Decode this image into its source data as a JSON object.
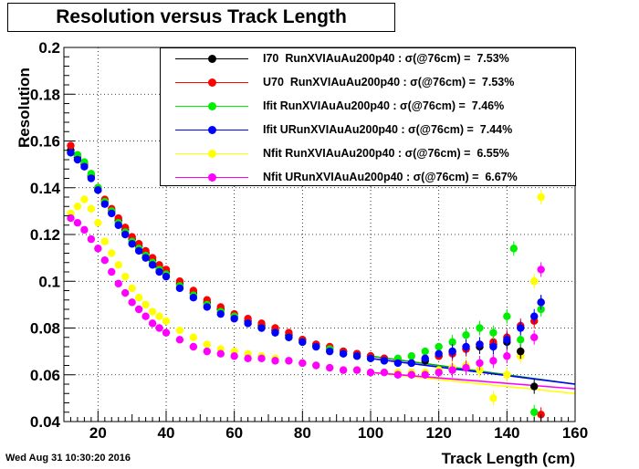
{
  "header": {
    "title": "Resolution versus Track Length"
  },
  "footer": {
    "timestamp": "Wed Aug 31 10:30:20 2016"
  },
  "legend": {
    "entries": [
      {
        "label": "I70  RunXVIAuAu200p40 : σ(@76cm) =  7.53%",
        "color": "#000000"
      },
      {
        "label": "U70  RunXVIAuAu200p40 : σ(@76cm) =  7.53%",
        "color": "#ff0000"
      },
      {
        "label": "Ifit RunXVIAuAu200p40 : σ(@76cm) =  7.46%",
        "color": "#00ee00"
      },
      {
        "label": "Ifit URunXVIAuAu200p40 : σ(@76cm) =  7.44%",
        "color": "#0000ff"
      },
      {
        "label": "Nfit RunXVIAuAu200p40 : σ(@76cm) =  6.55%",
        "color": "#ffff00"
      },
      {
        "label": "Nfit URunXVIAuAu200p40 : σ(@76cm) =  6.67%",
        "color": "#ff00ff"
      }
    ]
  },
  "chart_data": {
    "type": "scatter",
    "title": "Resolution versus Track Length",
    "xlabel": "Track Length (cm)",
    "ylabel": "Resolution",
    "xlim": [
      10,
      160
    ],
    "ylim": [
      0.04,
      0.2
    ],
    "xticks": [
      "20",
      "40",
      "60",
      "80",
      "100",
      "120",
      "140",
      "160"
    ],
    "xtick_values": [
      20,
      40,
      60,
      80,
      100,
      120,
      140,
      160
    ],
    "yticks": [
      "0.04",
      "0.06",
      "0.08",
      "0.1",
      "0.12",
      "0.14",
      "0.16",
      "0.18",
      "0.2"
    ],
    "ytick_values": [
      0.04,
      0.06,
      0.08,
      0.1,
      0.12,
      0.14,
      0.16,
      0.18,
      0.2
    ],
    "grid": true,
    "legend_position": "top-right",
    "series": [
      {
        "name": "I70  RunXVIAuAu200p40",
        "color": "#000000",
        "x": [
          12,
          14,
          16,
          18,
          20,
          22,
          24,
          26,
          28,
          30,
          32,
          34,
          36,
          38,
          40,
          44,
          48,
          52,
          56,
          60,
          64,
          68,
          72,
          76,
          80,
          84,
          88,
          92,
          96,
          100,
          104,
          108,
          112,
          116,
          120,
          124,
          128,
          132,
          136,
          140,
          144,
          148,
          150
        ],
        "y": [
          0.156,
          0.153,
          0.15,
          0.145,
          0.139,
          0.134,
          0.13,
          0.126,
          0.122,
          0.118,
          0.115,
          0.112,
          0.109,
          0.106,
          0.104,
          0.099,
          0.095,
          0.091,
          0.088,
          0.085,
          0.083,
          0.081,
          0.079,
          0.077,
          0.075,
          0.073,
          0.071,
          0.07,
          0.069,
          0.068,
          0.067,
          0.066,
          0.065,
          0.066,
          0.068,
          0.07,
          0.071,
          0.072,
          0.073,
          0.074,
          0.07,
          0.055,
          0.091
        ]
      },
      {
        "name": "U70  RunXVIAuAu200p40",
        "color": "#ff0000",
        "x": [
          12,
          14,
          16,
          18,
          20,
          22,
          24,
          26,
          28,
          30,
          32,
          34,
          36,
          38,
          40,
          44,
          48,
          52,
          56,
          60,
          64,
          68,
          72,
          76,
          80,
          84,
          88,
          92,
          96,
          100,
          104,
          108,
          112,
          116,
          120,
          124,
          128,
          132,
          136,
          140,
          144,
          148,
          150
        ],
        "y": [
          0.158,
          0.154,
          0.15,
          0.145,
          0.14,
          0.135,
          0.131,
          0.127,
          0.123,
          0.119,
          0.116,
          0.113,
          0.11,
          0.107,
          0.105,
          0.1,
          0.096,
          0.092,
          0.089,
          0.086,
          0.084,
          0.082,
          0.08,
          0.078,
          0.075,
          0.073,
          0.072,
          0.07,
          0.069,
          0.068,
          0.067,
          0.066,
          0.065,
          0.067,
          0.068,
          0.069,
          0.071,
          0.073,
          0.074,
          0.076,
          0.081,
          0.083,
          0.043
        ]
      },
      {
        "name": "Ifit RunXVIAuAu200p40",
        "color": "#00ee00",
        "x": [
          12,
          14,
          16,
          18,
          20,
          22,
          24,
          26,
          28,
          30,
          32,
          34,
          36,
          38,
          40,
          44,
          48,
          52,
          56,
          60,
          64,
          68,
          72,
          76,
          80,
          84,
          88,
          92,
          96,
          100,
          104,
          108,
          112,
          116,
          120,
          124,
          128,
          132,
          136,
          140,
          142,
          144,
          148,
          150
        ],
        "y": [
          0.155,
          0.154,
          0.151,
          0.146,
          0.14,
          0.134,
          0.13,
          0.125,
          0.121,
          0.117,
          0.114,
          0.111,
          0.108,
          0.105,
          0.103,
          0.098,
          0.094,
          0.09,
          0.087,
          0.085,
          0.082,
          0.08,
          0.078,
          0.076,
          0.074,
          0.072,
          0.071,
          0.069,
          0.068,
          0.067,
          0.066,
          0.067,
          0.068,
          0.07,
          0.072,
          0.074,
          0.077,
          0.08,
          0.078,
          0.085,
          0.114,
          0.075,
          0.044,
          0.088
        ]
      },
      {
        "name": "Ifit URunXVIAuAu200p40",
        "color": "#0000ff",
        "x": [
          12,
          14,
          16,
          18,
          20,
          22,
          24,
          26,
          28,
          30,
          32,
          34,
          36,
          38,
          40,
          44,
          48,
          52,
          56,
          60,
          64,
          68,
          72,
          76,
          80,
          84,
          88,
          92,
          96,
          100,
          104,
          108,
          112,
          116,
          120,
          124,
          128,
          132,
          136,
          140,
          144,
          148,
          150
        ],
        "y": [
          0.155,
          0.152,
          0.149,
          0.144,
          0.139,
          0.133,
          0.129,
          0.124,
          0.12,
          0.116,
          0.113,
          0.11,
          0.107,
          0.104,
          0.102,
          0.097,
          0.093,
          0.089,
          0.086,
          0.084,
          0.082,
          0.08,
          0.078,
          0.076,
          0.074,
          0.072,
          0.07,
          0.069,
          0.068,
          0.067,
          0.066,
          0.065,
          0.065,
          0.067,
          0.069,
          0.07,
          0.072,
          0.073,
          0.072,
          0.075,
          0.08,
          0.085,
          0.091
        ]
      },
      {
        "name": "Nfit RunXVIAuAu200p40",
        "color": "#ffff00",
        "x": [
          12,
          14,
          16,
          18,
          20,
          22,
          24,
          26,
          28,
          30,
          32,
          34,
          36,
          38,
          40,
          44,
          48,
          52,
          56,
          60,
          64,
          68,
          72,
          76,
          80,
          84,
          88,
          92,
          96,
          100,
          104,
          108,
          112,
          116,
          120,
          124,
          128,
          132,
          136,
          140,
          144,
          148,
          150
        ],
        "y": [
          0.129,
          0.132,
          0.135,
          0.131,
          0.125,
          0.117,
          0.112,
          0.107,
          0.102,
          0.097,
          0.093,
          0.09,
          0.087,
          0.085,
          0.083,
          0.079,
          0.076,
          0.073,
          0.071,
          0.07,
          0.069,
          0.068,
          0.067,
          0.066,
          0.065,
          0.064,
          0.063,
          0.062,
          0.062,
          0.061,
          0.061,
          0.061,
          0.061,
          0.061,
          0.062,
          0.063,
          0.064,
          0.062,
          0.05,
          0.06,
          0.068,
          0.1,
          0.136
        ]
      },
      {
        "name": "Nfit URunXVIAuAu200p40",
        "color": "#ff00ff",
        "x": [
          12,
          14,
          16,
          18,
          20,
          22,
          24,
          26,
          28,
          30,
          32,
          34,
          36,
          38,
          40,
          44,
          48,
          52,
          56,
          60,
          64,
          68,
          72,
          76,
          80,
          84,
          88,
          92,
          96,
          100,
          104,
          108,
          112,
          116,
          120,
          124,
          128,
          132,
          136,
          140,
          144,
          148,
          150
        ],
        "y": [
          0.127,
          0.125,
          0.122,
          0.118,
          0.114,
          0.109,
          0.104,
          0.099,
          0.095,
          0.091,
          0.088,
          0.085,
          0.082,
          0.08,
          0.078,
          0.075,
          0.072,
          0.07,
          0.069,
          0.068,
          0.067,
          0.067,
          0.066,
          0.066,
          0.065,
          0.064,
          0.063,
          0.062,
          0.062,
          0.061,
          0.061,
          0.06,
          0.06,
          0.06,
          0.061,
          0.062,
          0.063,
          0.065,
          0.066,
          0.068,
          0.07,
          0.076,
          0.105
        ]
      }
    ],
    "fit_lines": [
      {
        "color": "#00aa00",
        "x": [
          100,
          160
        ],
        "y": [
          0.068,
          0.056
        ]
      },
      {
        "color": "#0000ff",
        "x": [
          100,
          160
        ],
        "y": [
          0.067,
          0.056
        ]
      },
      {
        "color": "#ffff00",
        "x": [
          100,
          160
        ],
        "y": [
          0.061,
          0.052
        ]
      },
      {
        "color": "#ff00ff",
        "x": [
          100,
          160
        ],
        "y": [
          0.061,
          0.054
        ]
      }
    ]
  }
}
